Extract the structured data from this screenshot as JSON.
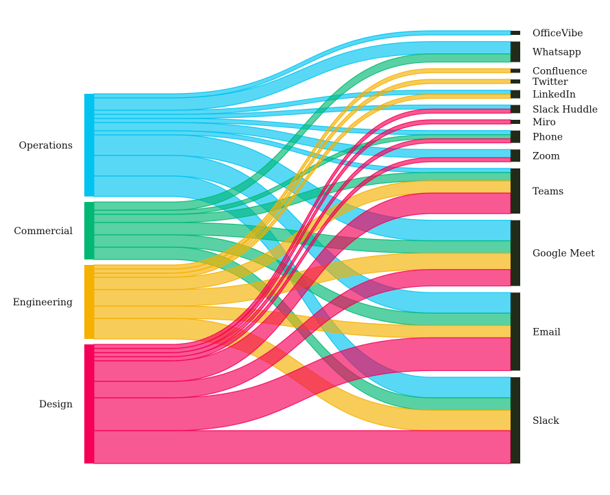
{
  "chart_data": {
    "type": "sankey",
    "title": "",
    "sources": [
      {
        "name": "Operations",
        "color": "#00c3f0"
      },
      {
        "name": "Commercial",
        "color": "#00b874"
      },
      {
        "name": "Engineering",
        "color": "#f5b000"
      },
      {
        "name": "Design",
        "color": "#f50057"
      }
    ],
    "targets": [
      {
        "name": "OfficeVibe"
      },
      {
        "name": "Whatsapp"
      },
      {
        "name": "Confluence"
      },
      {
        "name": "Twitter"
      },
      {
        "name": "LinkedIn"
      },
      {
        "name": "Slack Huddle"
      },
      {
        "name": "Miro"
      },
      {
        "name": "Phone"
      },
      {
        "name": "Zoom"
      },
      {
        "name": "Teams"
      },
      {
        "name": "Google Meet"
      },
      {
        "name": "Email"
      },
      {
        "name": "Slack"
      }
    ],
    "target_color": "#222a18",
    "links": [
      {
        "source": "Operations",
        "target": "OfficeVibe",
        "value": 1
      },
      {
        "source": "Operations",
        "target": "Whatsapp",
        "value": 3
      },
      {
        "source": "Operations",
        "target": "LinkedIn",
        "value": 1
      },
      {
        "source": "Operations",
        "target": "Slack Huddle",
        "value": 1
      },
      {
        "source": "Operations",
        "target": "Phone",
        "value": 1
      },
      {
        "source": "Operations",
        "target": "Zoom",
        "value": 2
      },
      {
        "source": "Operations",
        "target": "Teams",
        "value": 1
      },
      {
        "source": "Operations",
        "target": "Google Meet",
        "value": 5
      },
      {
        "source": "Operations",
        "target": "Email",
        "value": 5
      },
      {
        "source": "Operations",
        "target": "Slack",
        "value": 5
      },
      {
        "source": "Commercial",
        "target": "Whatsapp",
        "value": 2
      },
      {
        "source": "Commercial",
        "target": "Phone",
        "value": 1
      },
      {
        "source": "Commercial",
        "target": "Teams",
        "value": 2
      },
      {
        "source": "Commercial",
        "target": "Google Meet",
        "value": 3
      },
      {
        "source": "Commercial",
        "target": "Email",
        "value": 3
      },
      {
        "source": "Commercial",
        "target": "Slack",
        "value": 3
      },
      {
        "source": "Engineering",
        "target": "Confluence",
        "value": 1
      },
      {
        "source": "Engineering",
        "target": "Twitter",
        "value": 1
      },
      {
        "source": "Engineering",
        "target": "LinkedIn",
        "value": 1
      },
      {
        "source": "Engineering",
        "target": "Teams",
        "value": 3
      },
      {
        "source": "Engineering",
        "target": "Google Meet",
        "value": 4
      },
      {
        "source": "Engineering",
        "target": "Email",
        "value": 3
      },
      {
        "source": "Engineering",
        "target": "Slack",
        "value": 5
      },
      {
        "source": "Design",
        "target": "Slack Huddle",
        "value": 1
      },
      {
        "source": "Design",
        "target": "Miro",
        "value": 1
      },
      {
        "source": "Design",
        "target": "Phone",
        "value": 1
      },
      {
        "source": "Design",
        "target": "Zoom",
        "value": 1
      },
      {
        "source": "Design",
        "target": "Teams",
        "value": 5
      },
      {
        "source": "Design",
        "target": "Google Meet",
        "value": 4
      },
      {
        "source": "Design",
        "target": "Email",
        "value": 8
      },
      {
        "source": "Design",
        "target": "Slack",
        "value": 8
      }
    ]
  }
}
